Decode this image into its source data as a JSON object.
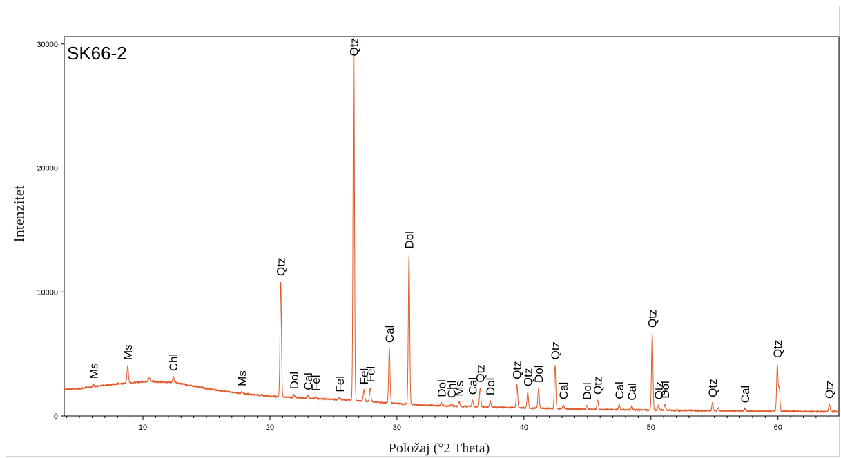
{
  "chart_data": {
    "type": "line",
    "title": "SK66-2",
    "xlabel": "Položaj (°2 Theta)",
    "ylabel": "Intenzitet",
    "xlim": [
      3.8,
      64.8
    ],
    "ylim": [
      0,
      30600
    ],
    "xticks": [
      10,
      20,
      30,
      40,
      50,
      60
    ],
    "yticks": [
      0,
      10000,
      20000,
      30000
    ],
    "grid": false,
    "series": [
      {
        "name": "",
        "color": "#e05a2b",
        "baseline": [
          [
            3.8,
            2150
          ],
          [
            5,
            2200
          ],
          [
            7,
            2480
          ],
          [
            9,
            2680
          ],
          [
            10.5,
            2780
          ],
          [
            12.5,
            2700
          ],
          [
            14,
            2400
          ],
          [
            16,
            2050
          ],
          [
            18,
            1780
          ],
          [
            20,
            1600
          ],
          [
            22,
            1480
          ],
          [
            24,
            1380
          ],
          [
            26,
            1300
          ],
          [
            28,
            1150
          ],
          [
            30,
            1000
          ],
          [
            32,
            880
          ],
          [
            34,
            800
          ],
          [
            36,
            760
          ],
          [
            38,
            700
          ],
          [
            40,
            650
          ],
          [
            44,
            560
          ],
          [
            48,
            500
          ],
          [
            52,
            450
          ],
          [
            56,
            400
          ],
          [
            60,
            380
          ],
          [
            64.8,
            340
          ]
        ],
        "peaks": [
          [
            6.1,
            200
          ],
          [
            8.8,
            1400
          ],
          [
            10.5,
            300
          ],
          [
            12.4,
            450
          ],
          [
            17.8,
            150
          ],
          [
            20.85,
            9300
          ],
          [
            21.9,
            220
          ],
          [
            23,
            200
          ],
          [
            23.6,
            150
          ],
          [
            25.5,
            150
          ],
          [
            26.6,
            29600
          ],
          [
            27.4,
            900
          ],
          [
            27.9,
            1100
          ],
          [
            29.4,
            4400
          ],
          [
            30.95,
            12100
          ],
          [
            33.5,
            250
          ],
          [
            34.3,
            200
          ],
          [
            34.9,
            350
          ],
          [
            35.95,
            500
          ],
          [
            36.55,
            1500
          ],
          [
            37.35,
            500
          ],
          [
            39.45,
            1850
          ],
          [
            40.3,
            1300
          ],
          [
            41.15,
            1600
          ],
          [
            42.45,
            3500
          ],
          [
            43.1,
            300
          ],
          [
            44.95,
            300
          ],
          [
            45.8,
            750
          ],
          [
            47.5,
            400
          ],
          [
            48.5,
            300
          ],
          [
            50.1,
            6200
          ],
          [
            50.6,
            400
          ],
          [
            51.1,
            500
          ],
          [
            54.85,
            650
          ],
          [
            55.3,
            250
          ],
          [
            57.4,
            200
          ],
          [
            59.95,
            3800
          ],
          [
            60.1,
            1900
          ],
          [
            64.05,
            600
          ]
        ]
      }
    ],
    "annotations": [
      {
        "label": "Ms",
        "x": 6.1
      },
      {
        "label": "Ms",
        "x": 8.8
      },
      {
        "label": "Chl",
        "x": 12.4
      },
      {
        "label": "Ms",
        "x": 17.8
      },
      {
        "label": "Qtz",
        "x": 20.85
      },
      {
        "label": "Dol",
        "x": 21.9
      },
      {
        "label": "Cal",
        "x": 23
      },
      {
        "label": "Fel",
        "x": 23.6
      },
      {
        "label": "Fel",
        "x": 25.5
      },
      {
        "label": "Qtz",
        "x": 26.6
      },
      {
        "label": "Fel",
        "x": 27.4
      },
      {
        "label": "Fel",
        "x": 27.9
      },
      {
        "label": "Cal",
        "x": 29.4
      },
      {
        "label": "Dol",
        "x": 30.95
      },
      {
        "label": "Dol",
        "x": 33.5
      },
      {
        "label": "Chl",
        "x": 34.3
      },
      {
        "label": "Ms",
        "x": 34.9
      },
      {
        "label": "Cal",
        "x": 35.95
      },
      {
        "label": "Qtz",
        "x": 36.55
      },
      {
        "label": "Dol",
        "x": 37.35
      },
      {
        "label": "Qtz",
        "x": 39.45
      },
      {
        "label": "Qtz",
        "x": 40.3
      },
      {
        "label": "Dol",
        "x": 41.15
      },
      {
        "label": "Qtz",
        "x": 42.45
      },
      {
        "label": "Cal",
        "x": 43.1
      },
      {
        "label": "Dol",
        "x": 44.95
      },
      {
        "label": "Qtz",
        "x": 45.8
      },
      {
        "label": "Cal",
        "x": 47.5
      },
      {
        "label": "Cal",
        "x": 48.5
      },
      {
        "label": "Qtz",
        "x": 50.1
      },
      {
        "label": "Qtz",
        "x": 50.6
      },
      {
        "label": "Dol",
        "x": 51.1
      },
      {
        "label": "Qtz",
        "x": 54.85
      },
      {
        "label": "Cal",
        "x": 57.4
      },
      {
        "label": "Qtz",
        "x": 59.95
      },
      {
        "label": "Qtz",
        "x": 64.05
      }
    ]
  }
}
